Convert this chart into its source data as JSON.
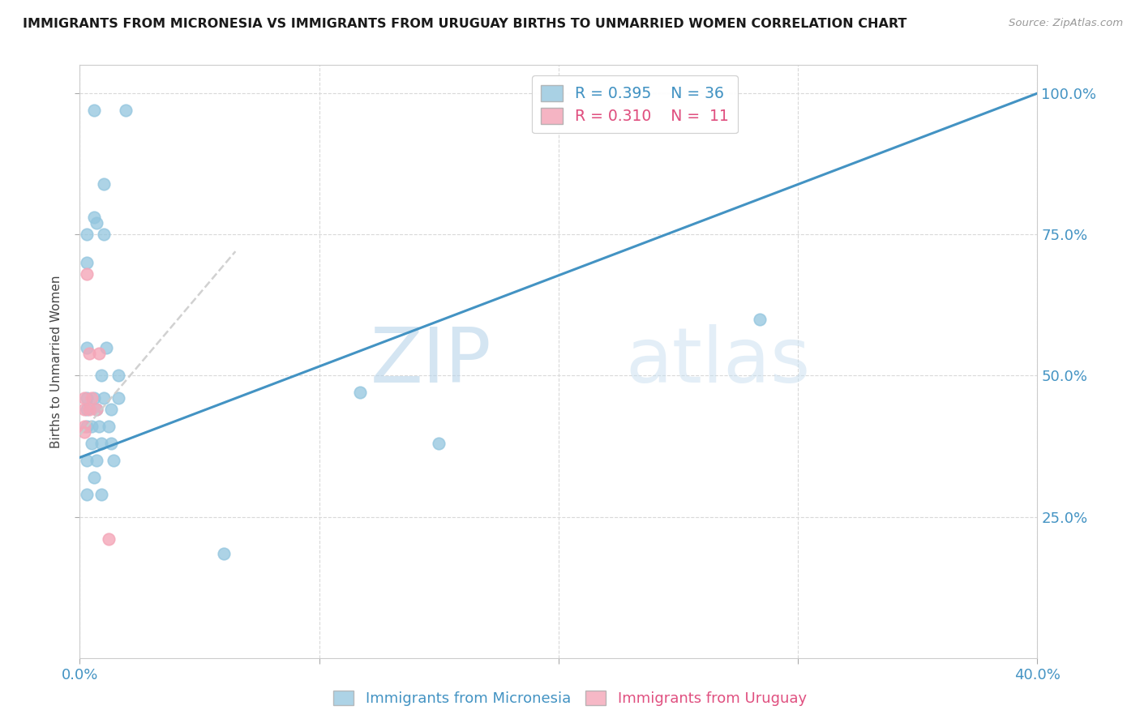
{
  "title": "IMMIGRANTS FROM MICRONESIA VS IMMIGRANTS FROM URUGUAY BIRTHS TO UNMARRIED WOMEN CORRELATION CHART",
  "source_text": "Source: ZipAtlas.com",
  "ylabel": "Births to Unmarried Women",
  "xlabel_blue": "Immigrants from Micronesia",
  "xlabel_pink": "Immigrants from Uruguay",
  "watermark_zip": "ZIP",
  "watermark_atlas": "atlas",
  "legend_blue_R": "R = 0.395",
  "legend_blue_N": "N = 36",
  "legend_pink_R": "R = 0.310",
  "legend_pink_N": "N =  11",
  "blue_color": "#92c5de",
  "pink_color": "#f4a6b8",
  "trend_blue_color": "#4393c3",
  "trend_pink_color": "#d6604d",
  "blue_scatter": [
    [
      0.006,
      0.97
    ],
    [
      0.019,
      0.97
    ],
    [
      0.01,
      0.84
    ],
    [
      0.006,
      0.78
    ],
    [
      0.007,
      0.77
    ],
    [
      0.003,
      0.75
    ],
    [
      0.01,
      0.75
    ],
    [
      0.003,
      0.7
    ],
    [
      0.284,
      0.6
    ],
    [
      0.003,
      0.55
    ],
    [
      0.011,
      0.55
    ],
    [
      0.009,
      0.5
    ],
    [
      0.016,
      0.5
    ],
    [
      0.003,
      0.46
    ],
    [
      0.006,
      0.46
    ],
    [
      0.01,
      0.46
    ],
    [
      0.016,
      0.46
    ],
    [
      0.003,
      0.44
    ],
    [
      0.007,
      0.44
    ],
    [
      0.013,
      0.44
    ],
    [
      0.003,
      0.41
    ],
    [
      0.005,
      0.41
    ],
    [
      0.008,
      0.41
    ],
    [
      0.012,
      0.41
    ],
    [
      0.005,
      0.38
    ],
    [
      0.009,
      0.38
    ],
    [
      0.013,
      0.38
    ],
    [
      0.003,
      0.35
    ],
    [
      0.007,
      0.35
    ],
    [
      0.014,
      0.35
    ],
    [
      0.006,
      0.32
    ],
    [
      0.003,
      0.29
    ],
    [
      0.009,
      0.29
    ],
    [
      0.06,
      0.185
    ],
    [
      0.117,
      0.47
    ],
    [
      0.15,
      0.38
    ]
  ],
  "pink_scatter": [
    [
      0.003,
      0.68
    ],
    [
      0.004,
      0.54
    ],
    [
      0.008,
      0.54
    ],
    [
      0.002,
      0.46
    ],
    [
      0.005,
      0.46
    ],
    [
      0.002,
      0.44
    ],
    [
      0.004,
      0.44
    ],
    [
      0.007,
      0.44
    ],
    [
      0.002,
      0.41
    ],
    [
      0.012,
      0.21
    ],
    [
      0.002,
      0.4
    ]
  ],
  "xmin": 0.0,
  "xmax": 0.4,
  "ymin": 0.0,
  "ymax": 1.05,
  "yticks": [
    0.25,
    0.5,
    0.75,
    1.0
  ],
  "ytick_labels": [
    "25.0%",
    "50.0%",
    "75.0%",
    "100.0%"
  ],
  "xticks": [
    0.0,
    0.1,
    0.2,
    0.3,
    0.4
  ],
  "xtick_labels": [
    "0.0%",
    "",
    "",
    "",
    "40.0%"
  ],
  "blue_trend_x": [
    0.0,
    0.4
  ],
  "blue_trend_y": [
    0.355,
    1.0
  ],
  "pink_trend_x": [
    0.0,
    0.065
  ],
  "pink_trend_y": [
    0.395,
    0.72
  ]
}
